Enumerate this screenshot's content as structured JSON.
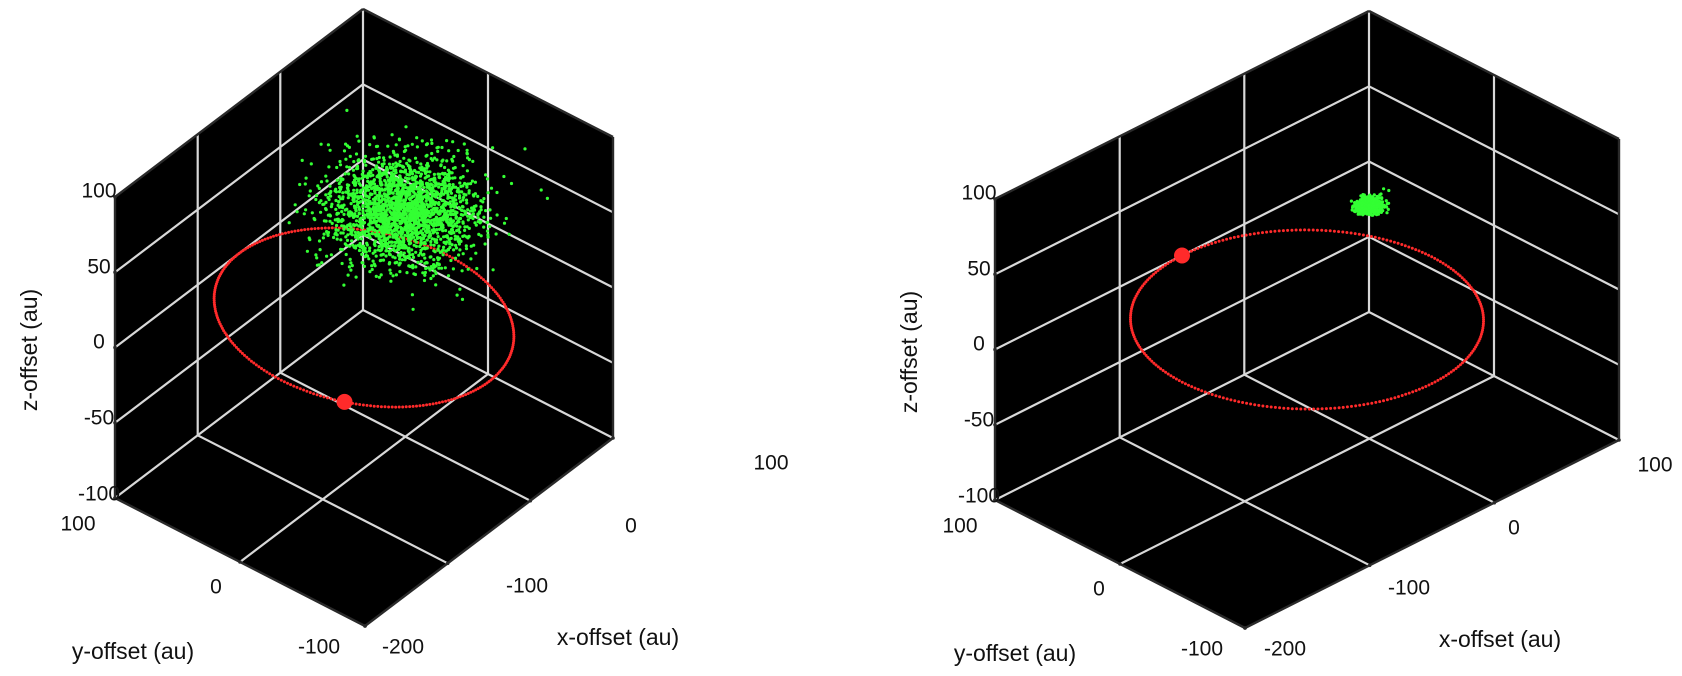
{
  "chart_data": [
    {
      "type": "scatter",
      "plot3d": true,
      "xlabel": "x-offset (au)",
      "ylabel": "y-offset (au)",
      "zlabel": "z-offset (au)",
      "xlim": [
        -200,
        100
      ],
      "ylim": [
        -100,
        100
      ],
      "zlim": [
        -100,
        100
      ],
      "xticks": [
        "100",
        "0",
        "-100",
        "-200"
      ],
      "yticks": [
        "100",
        "0",
        "-100"
      ],
      "zticks": [
        "100",
        "50",
        "0",
        "-50",
        "-100"
      ],
      "background": "#000000",
      "grid": true,
      "series": [
        {
          "kind": "orbit",
          "color": "#ff2a2a",
          "center": [
            -50,
            0,
            0
          ],
          "semi_axis": 100,
          "marker_angle_deg": 206
        },
        {
          "kind": "cloud",
          "color": "#33ff33",
          "center": [
            0,
            0,
            50
          ],
          "spread": [
            52,
            42,
            18
          ],
          "n_points": 2200
        }
      ]
    },
    {
      "type": "scatter",
      "plot3d": true,
      "xlabel": "x-offset (au)",
      "ylabel": "y-offset (au)",
      "zlabel": "z-offset (au)",
      "xlim": [
        -200,
        100
      ],
      "ylim": [
        -100,
        100
      ],
      "zlim": [
        -100,
        100
      ],
      "xticks": [
        "100",
        "0",
        "-100",
        "-200"
      ],
      "yticks": [
        "100",
        "0",
        "-100"
      ],
      "zticks": [
        "100",
        "50",
        "0",
        "-50",
        "-100"
      ],
      "background": "#000000",
      "grid": true,
      "series": [
        {
          "kind": "orbit",
          "color": "#ff2a2a",
          "center": [
            -50,
            0,
            0
          ],
          "semi_axis": 100,
          "marker_angle_deg": 90
        },
        {
          "kind": "cloud",
          "color": "#33ff33",
          "center": [
            0,
            0,
            55
          ],
          "spread": [
            8,
            7,
            3
          ],
          "n_points": 450
        }
      ]
    }
  ]
}
